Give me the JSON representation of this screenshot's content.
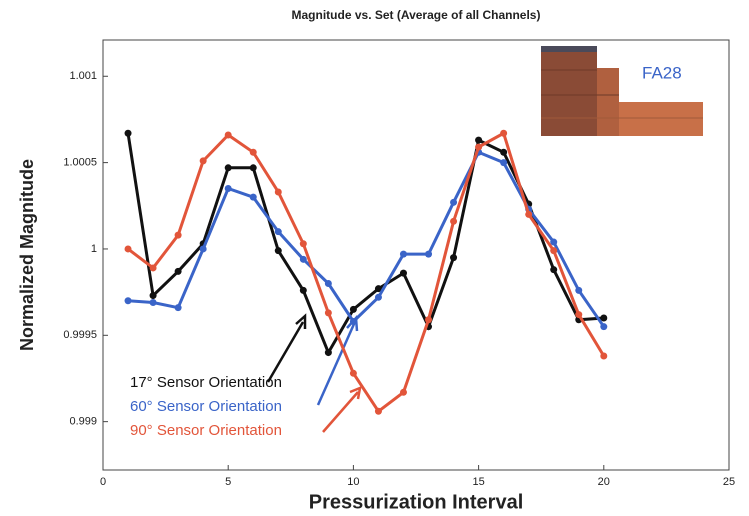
{
  "chart_data": {
    "type": "line",
    "title": "Magnitude vs. Set (Average of all Channels)",
    "x_label": "Pressurization Interval",
    "y_label": "Normalized Magnitude",
    "annotation": "FA28",
    "xlim": [
      0,
      25
    ],
    "xticks": [
      0,
      5,
      10,
      15,
      20,
      25
    ],
    "ylim": [
      0.99872,
      1.00121
    ],
    "yticks": [
      0.999,
      0.9995,
      1,
      1.0005,
      1.001
    ],
    "x": [
      1,
      2,
      3,
      4,
      5,
      6,
      7,
      8,
      9,
      10,
      11,
      12,
      13,
      14,
      15,
      16,
      17,
      18,
      19,
      20
    ],
    "series": [
      {
        "name": "17° Sensor Orientation",
        "color": "#111111",
        "values": [
          1.00067,
          0.99973,
          0.99987,
          1.00003,
          1.00047,
          1.00047,
          0.99999,
          0.99976,
          0.9994,
          0.99965,
          0.99977,
          0.99986,
          0.99955,
          0.99995,
          1.00063,
          1.00056,
          1.00026,
          0.99988,
          0.99959,
          0.9996
        ]
      },
      {
        "name": "60° Sensor Orientation",
        "color": "#3a64c8",
        "values": [
          0.9997,
          0.99969,
          0.99966,
          1.0,
          1.00035,
          1.0003,
          1.0001,
          0.99994,
          0.9998,
          0.99958,
          0.99972,
          0.99997,
          0.99997,
          1.00027,
          1.00056,
          1.0005,
          1.00023,
          1.00004,
          0.99976,
          0.99955
        ]
      },
      {
        "name": "90° Sensor Orientation",
        "color": "#e2553a",
        "values": [
          1.0,
          0.99989,
          1.00008,
          1.00051,
          1.00066,
          1.00056,
          1.00033,
          1.00003,
          0.99963,
          0.99928,
          0.99906,
          0.99917,
          0.99959,
          1.00016,
          1.00059,
          1.00067,
          1.0002,
          0.99999,
          0.99962,
          0.99938
        ]
      }
    ]
  }
}
